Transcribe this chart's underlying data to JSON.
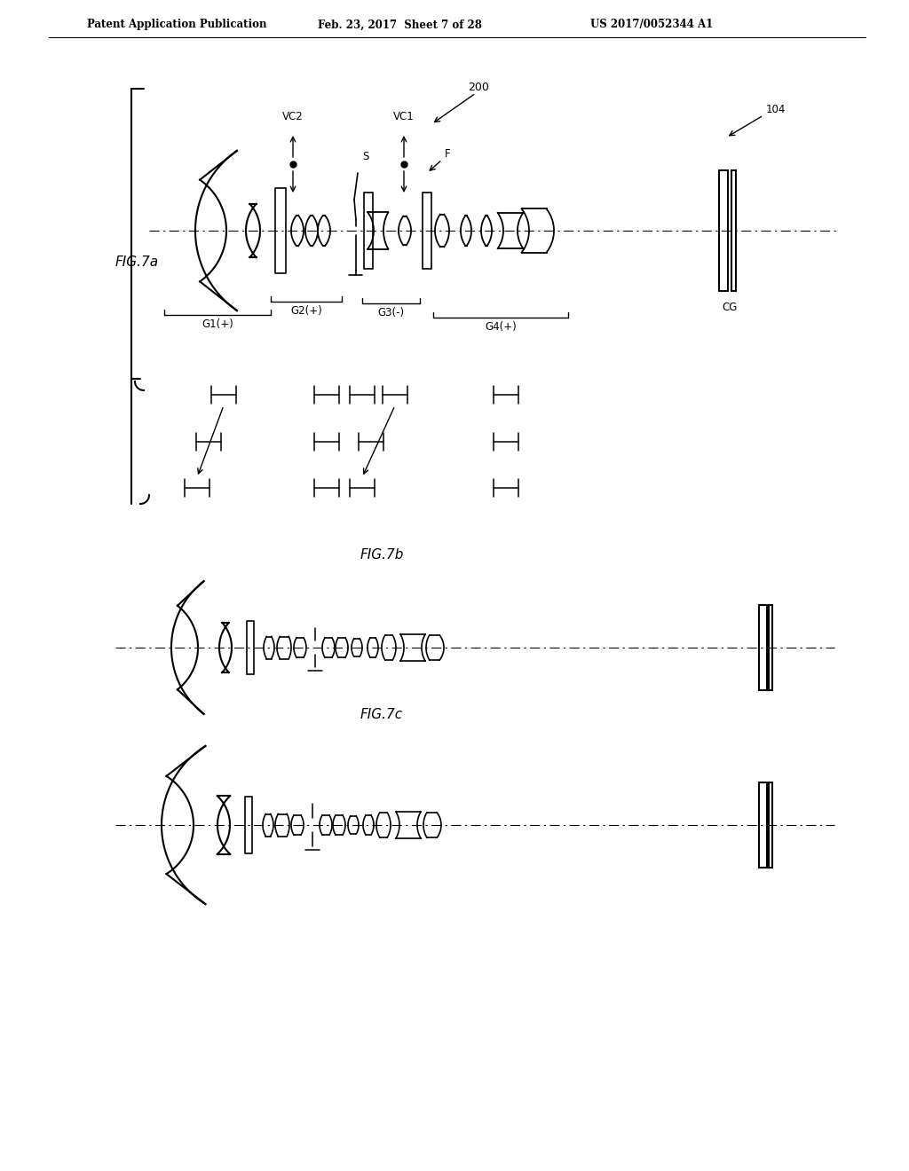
{
  "header_left": "Patent Application Publication",
  "header_mid": "Feb. 23, 2017  Sheet 7 of 28",
  "header_right": "US 2017/0052344 A1",
  "fig_label_a": "FIG.7a",
  "fig_label_b": "FIG.7b",
  "fig_label_c": "FIG.7c",
  "background": "#ffffff",
  "line_color": "#000000"
}
